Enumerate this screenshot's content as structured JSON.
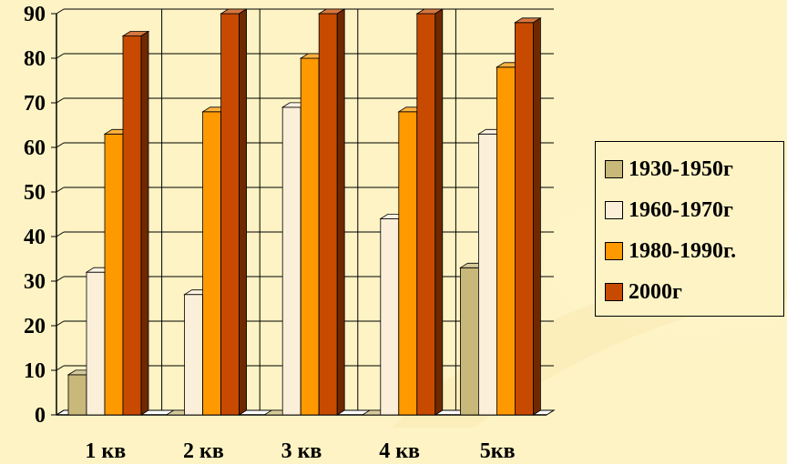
{
  "chart_data": {
    "type": "bar",
    "title": "",
    "xlabel": "",
    "ylabel": "",
    "ylim": [
      0,
      90
    ],
    "yticks": [
      "0",
      "10",
      "20",
      "30",
      "40",
      "50",
      "60",
      "70",
      "80",
      "90"
    ],
    "categories": [
      "1 кв",
      "2 кв",
      "3 кв",
      "4 кв",
      "5кв"
    ],
    "grid": true,
    "legend_position": "right",
    "series": [
      {
        "name": "1930-1950г",
        "color": "#C8B87A",
        "values": [
          9,
          0,
          0,
          0,
          33
        ]
      },
      {
        "name": "1960-1970г",
        "color": "#FBEFD9",
        "values": [
          32,
          27,
          69,
          44,
          63
        ]
      },
      {
        "name": "1980-1990г.",
        "color": "#FF9900",
        "values": [
          63,
          68,
          80,
          68,
          78
        ]
      },
      {
        "name": "2000г",
        "color": "#C84A00",
        "values": [
          85,
          90,
          90,
          90,
          88
        ]
      }
    ]
  }
}
